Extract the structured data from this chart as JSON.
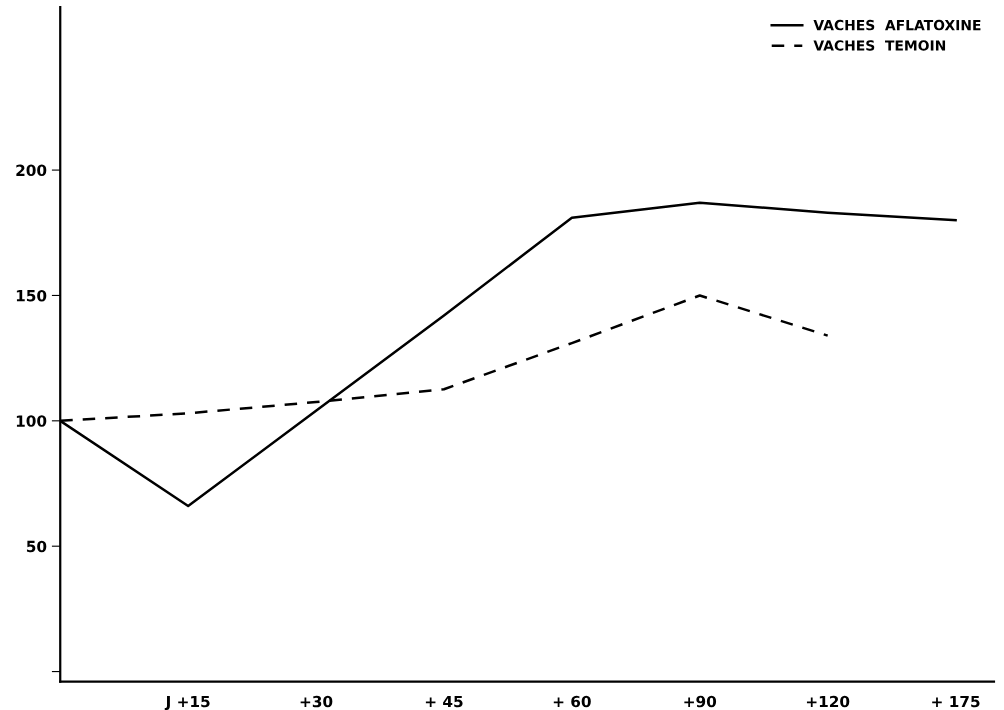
{
  "chart_data": {
    "type": "line",
    "categories": [
      null,
      "J +15",
      "+30",
      "+ 45",
      "+ 60",
      "+90",
      "+120",
      "+ 175"
    ],
    "ylim": [
      -4,
      265
    ],
    "yticks": [
      {
        "value": 0,
        "label": null
      },
      50,
      100,
      150,
      200
    ],
    "series": [
      {
        "name": "VACHES  AFLATOXINE",
        "color": "#000000",
        "line_style": "solid",
        "values": [
          100,
          66,
          104,
          142,
          181,
          187,
          183,
          180
        ]
      },
      {
        "name": "VACHES  TEMOIN",
        "color": "#000000",
        "line_style": "dashed",
        "values": [
          100,
          103,
          107.5,
          112.6,
          131,
          150,
          134,
          null
        ]
      }
    ],
    "grid": false,
    "legend": "top right",
    "marker": "none"
  }
}
